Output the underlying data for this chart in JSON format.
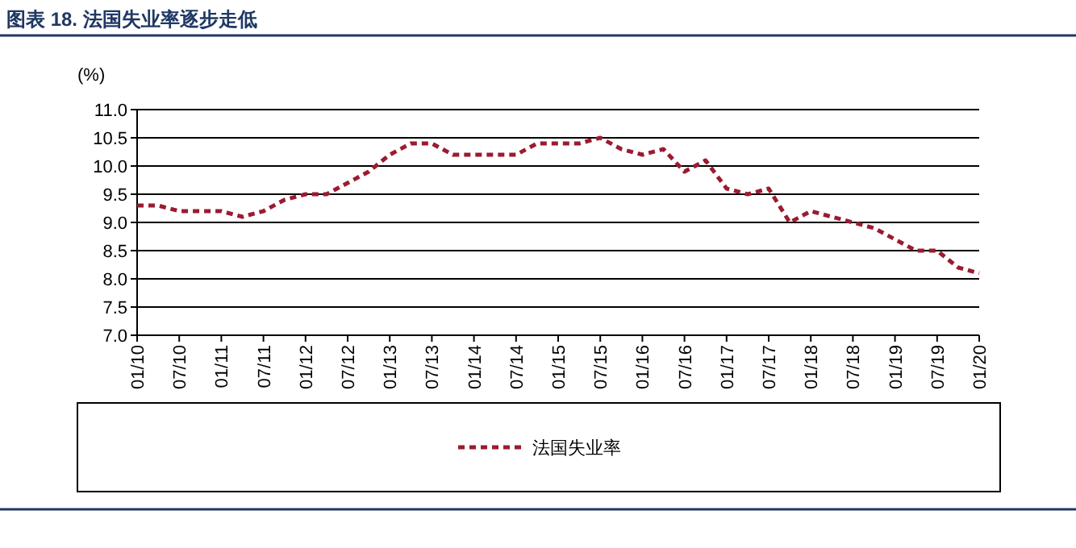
{
  "chart_data": {
    "type": "line",
    "title": "图表 18. 法国失业率逐步走低",
    "ylabel": "(%)",
    "categories": [
      "01/10",
      null,
      "07/10",
      null,
      "01/11",
      null,
      "07/11",
      null,
      "01/12",
      null,
      "07/12",
      null,
      "01/13",
      null,
      "07/13",
      null,
      "01/14",
      null,
      "07/14",
      null,
      "01/15",
      null,
      "07/15",
      null,
      "01/16",
      null,
      "07/16",
      null,
      "01/17",
      null,
      "07/17",
      null,
      "01/18",
      null,
      "07/18",
      null,
      "01/19",
      null,
      "07/19",
      null,
      "01/20"
    ],
    "series": [
      {
        "name": "法国失业率",
        "color": "#9b1b30",
        "values": [
          9.3,
          9.3,
          9.2,
          9.2,
          9.2,
          9.1,
          9.2,
          9.4,
          9.5,
          9.5,
          9.7,
          9.9,
          10.2,
          10.4,
          10.4,
          10.2,
          10.2,
          10.2,
          10.2,
          10.4,
          10.4,
          10.4,
          10.5,
          10.3,
          10.2,
          10.3,
          9.9,
          10.1,
          9.6,
          9.5,
          9.6,
          9.0,
          9.2,
          9.1,
          9.0,
          8.9,
          8.7,
          8.5,
          8.5,
          8.2,
          8.1
        ]
      }
    ],
    "ylim": [
      7.0,
      11.0
    ],
    "yticks": [
      {
        "value": 7,
        "label": "7.0"
      },
      {
        "value": 7.5,
        "label": "7.5"
      },
      {
        "value": 8,
        "label": "8.0"
      },
      {
        "value": 8.5,
        "label": "8.5"
      },
      {
        "value": 9,
        "label": "9.0"
      },
      {
        "value": 9.5,
        "label": "9.5"
      },
      {
        "value": 10,
        "label": "10.0"
      },
      {
        "value": 10.5,
        "label": "10.5"
      },
      {
        "value": 11,
        "label": "11.0"
      }
    ],
    "grid": "y",
    "legend": "bottom",
    "line_style": "dashed"
  }
}
